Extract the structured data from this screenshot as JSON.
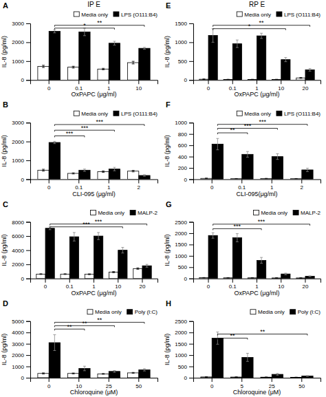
{
  "chart_data": [
    {
      "type": "bar",
      "label": "A",
      "title": "IP E",
      "xlabel": "OxPAPC (μg/ml)",
      "ylabel": "IL-8 (pg/ml)",
      "categories": [
        "0",
        "0.1",
        "1",
        "10"
      ],
      "series": [
        {
          "name": "Media only",
          "color": "white",
          "values": [
            720,
            680,
            580,
            920
          ],
          "errors": [
            60,
            50,
            40,
            70
          ]
        },
        {
          "name": "LPS (O111:B4)",
          "color": "black",
          "values": [
            2580,
            2550,
            1950,
            1680
          ],
          "errors": [
            80,
            200,
            100,
            50
          ]
        }
      ],
      "ylim": [
        0,
        3000
      ],
      "yticks": [
        0,
        1000,
        2000,
        3000
      ],
      "legend": "upper right",
      "annotations": [
        {
          "text": "*",
          "y": 2750,
          "x1": "0",
          "x2": "1"
        },
        {
          "text": "**",
          "y": 2900,
          "x1": "0",
          "x2": "10"
        }
      ]
    },
    {
      "type": "bar",
      "label": "B",
      "xlabel": "CLI-095 (μg/ml)",
      "ylabel": "IL-8 (pg/ml)",
      "categories": [
        "0",
        "0.1",
        "1",
        "2"
      ],
      "series": [
        {
          "name": "Media only",
          "color": "white",
          "values": [
            480,
            310,
            400,
            430
          ],
          "errors": [
            50,
            30,
            40,
            40
          ]
        },
        {
          "name": "LPS (O111:B4)",
          "color": "black",
          "values": [
            1950,
            480,
            540,
            200
          ],
          "errors": [
            60,
            60,
            90,
            40
          ]
        }
      ],
      "ylim": [
        0,
        3000
      ],
      "yticks": [
        0,
        1000,
        2000,
        3000
      ],
      "legend": "upper right",
      "annotations": [
        {
          "text": "***",
          "y": 2300,
          "x1": "0",
          "x2": "0.1"
        },
        {
          "text": "***",
          "y": 2600,
          "x1": "0",
          "x2": "1"
        },
        {
          "text": "***",
          "y": 2900,
          "x1": "0",
          "x2": "2"
        }
      ]
    },
    {
      "type": "bar",
      "label": "C",
      "xlabel": "OxPAPC (μg/ml)",
      "ylabel": "IL-8 (pg/ml)",
      "categories": [
        "0",
        "0.1",
        "1",
        "10",
        "20"
      ],
      "series": [
        {
          "name": "Media only",
          "color": "white",
          "values": [
            620,
            620,
            600,
            900,
            1400
          ],
          "errors": [
            50,
            50,
            60,
            80,
            100
          ]
        },
        {
          "name": "MALP-2",
          "color": "black",
          "values": [
            7100,
            5900,
            6000,
            4000,
            1800
          ],
          "errors": [
            200,
            600,
            500,
            400,
            200
          ]
        }
      ],
      "ylim": [
        0,
        8000
      ],
      "yticks": [
        0,
        2000,
        4000,
        6000,
        8000
      ],
      "legend": "upper right",
      "annotations": [
        {
          "text": "***",
          "y": 7300,
          "x1": "0",
          "x2": "10"
        },
        {
          "text": "***",
          "y": 7700,
          "x1": "0",
          "x2": "20"
        }
      ]
    },
    {
      "type": "bar",
      "label": "D",
      "xlabel": "Chloroquine (μM)",
      "ylabel": "IL-8 (pg/ml)",
      "categories": [
        "0",
        "10",
        "25",
        "50"
      ],
      "series": [
        {
          "name": "Media only",
          "color": "white",
          "values": [
            380,
            380,
            340,
            430
          ],
          "errors": [
            50,
            40,
            35,
            40
          ]
        },
        {
          "name": "Poly (I:C)",
          "color": "black",
          "values": [
            3100,
            820,
            560,
            700
          ],
          "errors": [
            700,
            200,
            80,
            100
          ]
        }
      ],
      "ylim": [
        0,
        5000
      ],
      "yticks": [
        0,
        1000,
        2000,
        3000,
        4000,
        5000
      ],
      "legend": "upper right",
      "annotations": [
        {
          "text": "**",
          "y": 4300,
          "x1": "0",
          "x2": "10"
        },
        {
          "text": "**",
          "y": 4600,
          "x1": "0",
          "x2": "25"
        },
        {
          "text": "**",
          "y": 4900,
          "x1": "0",
          "x2": "50"
        }
      ]
    },
    {
      "type": "bar",
      "label": "E",
      "title": "RP E",
      "xlabel": "OxPAPC (μg/ml)",
      "ylabel": "IL-8 (pg/ml)",
      "categories": [
        "0",
        "0.1",
        "1",
        "10",
        "20"
      ],
      "series": [
        {
          "name": "Media only",
          "color": "white",
          "values": [
            20,
            15,
            15,
            15,
            55
          ],
          "errors": [
            8,
            4,
            4,
            4,
            12
          ]
        },
        {
          "name": "LPS (O111:B4)",
          "color": "black",
          "values": [
            1180,
            960,
            1170,
            540,
            270
          ],
          "errors": [
            180,
            100,
            70,
            55,
            35
          ]
        }
      ],
      "ylim": [
        0,
        1500
      ],
      "yticks": [
        0,
        500,
        1000,
        1500
      ],
      "legend": "upper right",
      "annotations": [
        {
          "text": "*",
          "y": 1360,
          "x1": "0",
          "x2": "10"
        },
        {
          "text": "**",
          "y": 1450,
          "x1": "0",
          "x2": "20"
        }
      ]
    },
    {
      "type": "bar",
      "label": "F",
      "xlabel": "CLI-095(μg/ml)",
      "ylabel": "IL-8 (pg/ml)",
      "categories": [
        "0",
        "0.1",
        "1",
        "2"
      ],
      "series": [
        {
          "name": "Media only",
          "color": "white",
          "values": [
            15,
            10,
            12,
            10
          ],
          "errors": [
            5,
            3,
            4,
            3
          ]
        },
        {
          "name": "LPS (O111:B4)",
          "color": "black",
          "values": [
            620,
            440,
            400,
            165
          ],
          "errors": [
            100,
            50,
            50,
            30
          ]
        }
      ],
      "ylim": [
        0,
        1000
      ],
      "yticks": [
        0,
        200,
        400,
        600,
        800,
        1000
      ],
      "legend": "upper right",
      "annotations": [
        {
          "text": "**",
          "y": 820,
          "x1": "0",
          "x2": "0.1"
        },
        {
          "text": "***",
          "y": 900,
          "x1": "0",
          "x2": "1"
        },
        {
          "text": "***",
          "y": 970,
          "x1": "0",
          "x2": "2"
        }
      ]
    },
    {
      "type": "bar",
      "label": "G",
      "xlabel": "OxPAPC (μg/ml)",
      "ylabel": "IL-8 (pg/ml)",
      "categories": [
        "0",
        "0.1",
        "1",
        "10",
        "20"
      ],
      "series": [
        {
          "name": "Media only",
          "color": "white",
          "values": [
            35,
            30,
            30,
            25,
            25
          ],
          "errors": [
            8,
            6,
            6,
            5,
            5
          ]
        },
        {
          "name": "MALP-2",
          "color": "black",
          "values": [
            1900,
            1800,
            800,
            200,
            100
          ],
          "errors": [
            120,
            180,
            130,
            35,
            18
          ]
        }
      ],
      "ylim": [
        0,
        2500
      ],
      "yticks": [
        0,
        500,
        1000,
        1500,
        2000,
        2500
      ],
      "legend": "upper right",
      "annotations": [
        {
          "text": "***",
          "y": 2200,
          "x1": "0",
          "x2": "1"
        },
        {
          "text": "***",
          "y": 2400,
          "x1": "0",
          "x2": "20"
        }
      ]
    },
    {
      "type": "bar",
      "label": "H",
      "xlabel": "Chloroquine (μM)",
      "ylabel": "IL-8 (pg/ml)",
      "categories": [
        "0",
        "5",
        "25",
        "50"
      ],
      "series": [
        {
          "name": "Media only",
          "color": "white",
          "values": [
            35,
            30,
            25,
            20
          ],
          "errors": [
            10,
            8,
            6,
            5
          ]
        },
        {
          "name": "Poly (I:C)",
          "color": "black",
          "values": [
            1750,
            900,
            150,
            80
          ],
          "errors": [
            270,
            180,
            40,
            18
          ]
        }
      ],
      "ylim": [
        0,
        2500
      ],
      "yticks": [
        0,
        500,
        1000,
        1500,
        2000,
        2500
      ],
      "legend": "upper right",
      "annotations": [
        {
          "text": "**",
          "y": 1750,
          "x1": "0",
          "x2": "5"
        },
        {
          "text": "**",
          "y": 1930,
          "x1": "0",
          "x2": "50"
        }
      ]
    }
  ]
}
